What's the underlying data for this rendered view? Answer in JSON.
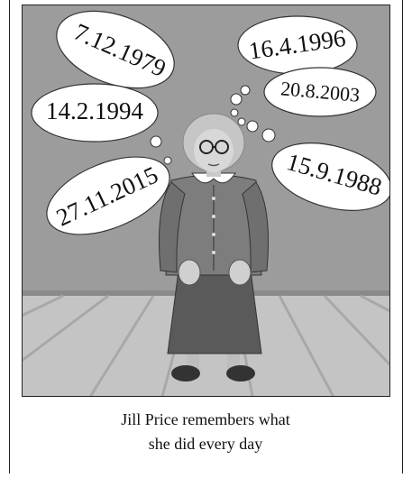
{
  "dates": [
    "7.12.1979",
    "16.4.1996",
    "14.2.1994",
    "20.8.2003",
    "27.11.2015",
    "15.9.1988"
  ],
  "caption": [
    "Jill Price remembers what",
    "she did every day"
  ]
}
